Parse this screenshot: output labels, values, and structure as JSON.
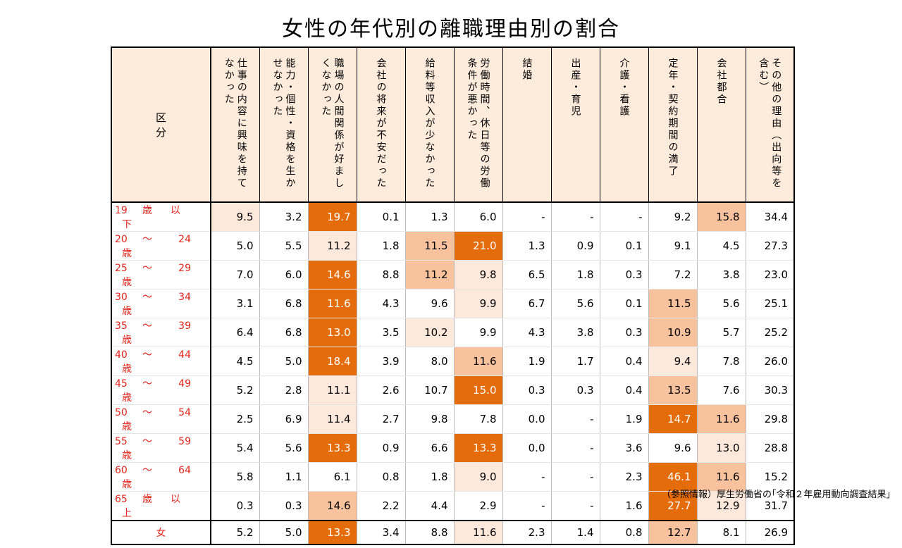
{
  "title": "女性の年代別の離職理由別の割合",
  "corner_label": "区　分",
  "columns": [
    "仕事の内容に興味を持てなかった",
    "能力・個性・資格を生かせなかった",
    "職場の人間関係が好ましくなかった",
    "会社の将来が不安だった",
    "給料等収入が少なかった",
    "労働時間、休日等の労働条件が悪かった",
    "結婚",
    "出産・育児",
    "介護・看護",
    "定年・契約期間の満了",
    "会社都合",
    "その他の理由（出向等を含む）"
  ],
  "header_lines": [
    [
      "仕事の内容に興味を",
      "持てなかった"
    ],
    [
      "能力・個性・資格を",
      "生かせなかった"
    ],
    [
      "職場の人間関係が",
      "好ましくなかった"
    ],
    [
      "会社の将来が",
      "不安だった"
    ],
    [
      "給料等収入が",
      "少なかった"
    ],
    [
      "労働時間、休日等の",
      "労働条件が悪かった"
    ],
    [
      "結婚"
    ],
    [
      "出産・育児"
    ],
    [
      "介護・看護"
    ],
    [
      "定年・契約",
      "期間の満了"
    ],
    [
      "会社都合"
    ],
    [
      "その他の理由",
      "（出向等を含む）"
    ]
  ],
  "rows": [
    {
      "label": [
        "19",
        "歳",
        "以",
        "下"
      ],
      "values": [
        "9.5",
        "3.2",
        "19.7",
        "0.1",
        "1.3",
        "6.0",
        "-",
        "-",
        "-",
        "9.2",
        "15.8",
        "34.4"
      ],
      "levels": [
        1,
        0,
        3,
        0,
        0,
        0,
        0,
        0,
        0,
        0,
        2,
        0
      ]
    },
    {
      "label": [
        "20",
        "～",
        "24",
        "歳"
      ],
      "values": [
        "5.0",
        "5.5",
        "11.2",
        "1.8",
        "11.5",
        "21.0",
        "1.3",
        "0.9",
        "0.1",
        "9.1",
        "4.5",
        "27.3"
      ],
      "levels": [
        0,
        0,
        1,
        0,
        2,
        3,
        0,
        0,
        0,
        0,
        0,
        0
      ]
    },
    {
      "label": [
        "25",
        "～",
        "29",
        "歳"
      ],
      "values": [
        "7.0",
        "6.0",
        "14.6",
        "8.8",
        "11.2",
        "9.8",
        "6.5",
        "1.8",
        "0.3",
        "7.2",
        "3.8",
        "23.0"
      ],
      "levels": [
        0,
        0,
        3,
        0,
        2,
        1,
        0,
        0,
        0,
        0,
        0,
        0
      ]
    },
    {
      "label": [
        "30",
        "～",
        "34",
        "歳"
      ],
      "values": [
        "3.1",
        "6.8",
        "11.6",
        "4.3",
        "9.6",
        "9.9",
        "6.7",
        "5.6",
        "0.1",
        "11.5",
        "5.6",
        "25.1"
      ],
      "levels": [
        0,
        0,
        3,
        0,
        0,
        1,
        0,
        0,
        0,
        2,
        0,
        0
      ]
    },
    {
      "label": [
        "35",
        "～",
        "39",
        "歳"
      ],
      "values": [
        "6.4",
        "6.8",
        "13.0",
        "3.5",
        "10.2",
        "9.9",
        "4.3",
        "3.8",
        "0.3",
        "10.9",
        "5.7",
        "25.2"
      ],
      "levels": [
        0,
        0,
        3,
        0,
        1,
        0,
        0,
        0,
        0,
        2,
        0,
        0
      ]
    },
    {
      "label": [
        "40",
        "～",
        "44",
        "歳"
      ],
      "values": [
        "4.5",
        "5.0",
        "18.4",
        "3.9",
        "8.0",
        "11.6",
        "1.9",
        "1.7",
        "0.4",
        "9.4",
        "7.8",
        "26.0"
      ],
      "levels": [
        0,
        0,
        3,
        0,
        0,
        2,
        0,
        0,
        0,
        1,
        0,
        0
      ]
    },
    {
      "label": [
        "45",
        "～",
        "49",
        "歳"
      ],
      "values": [
        "5.2",
        "2.8",
        "11.1",
        "2.6",
        "10.7",
        "15.0",
        "0.3",
        "0.3",
        "0.4",
        "13.5",
        "7.6",
        "30.3"
      ],
      "levels": [
        0,
        0,
        1,
        0,
        0,
        3,
        0,
        0,
        0,
        2,
        0,
        0
      ]
    },
    {
      "label": [
        "50",
        "～",
        "54",
        "歳"
      ],
      "values": [
        "2.5",
        "6.9",
        "11.4",
        "2.7",
        "9.8",
        "7.8",
        "0.0",
        "-",
        "1.9",
        "14.7",
        "11.6",
        "29.8"
      ],
      "levels": [
        0,
        0,
        1,
        0,
        0,
        0,
        0,
        0,
        0,
        3,
        2,
        0
      ]
    },
    {
      "label": [
        "55",
        "～",
        "59",
        "歳"
      ],
      "values": [
        "5.4",
        "5.6",
        "13.3",
        "0.9",
        "6.6",
        "13.3",
        "0.0",
        "-",
        "3.6",
        "9.6",
        "13.0",
        "28.8"
      ],
      "levels": [
        0,
        0,
        3,
        0,
        0,
        3,
        0,
        0,
        0,
        0,
        1,
        0
      ]
    },
    {
      "label": [
        "60",
        "～",
        "64",
        "歳"
      ],
      "values": [
        "5.8",
        "1.1",
        "6.1",
        "0.8",
        "1.8",
        "9.0",
        "-",
        "-",
        "2.3",
        "46.1",
        "11.6",
        "15.2"
      ],
      "levels": [
        0,
        0,
        0,
        0,
        0,
        1,
        0,
        0,
        0,
        3,
        2,
        0
      ]
    },
    {
      "label": [
        "65",
        "歳",
        "以",
        "上"
      ],
      "values": [
        "0.3",
        "0.3",
        "14.6",
        "2.2",
        "4.4",
        "2.9",
        "-",
        "-",
        "1.6",
        "27.7",
        "12.9",
        "31.7"
      ],
      "levels": [
        0,
        0,
        2,
        0,
        0,
        0,
        0,
        0,
        0,
        3,
        1,
        0
      ]
    }
  ],
  "total": {
    "label": "女",
    "values": [
      "5.2",
      "5.0",
      "13.3",
      "3.4",
      "8.8",
      "11.6",
      "2.3",
      "1.4",
      "0.8",
      "12.7",
      "8.1",
      "26.9"
    ],
    "levels": [
      0,
      0,
      3,
      0,
      0,
      1,
      0,
      0,
      0,
      2,
      0,
      0
    ]
  },
  "source": "（参照情報）厚生労働省の｢令和２年雇用動向調査結果｣",
  "colors": {
    "level1": "#fde9dc",
    "level2": "#f9c29e",
    "level3": "#e46c0a",
    "header": "#fdebdc",
    "row_label": "#e1251b"
  }
}
